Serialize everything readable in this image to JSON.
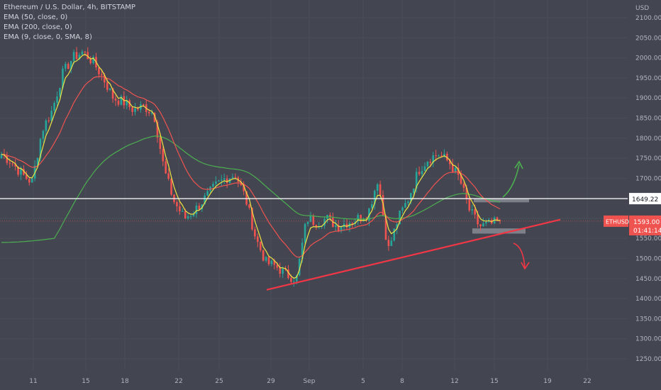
{
  "legend": {
    "line1": "Ethereum / U.S. Dollar, 4h, BITSTAMP",
    "line2": "EMA (50, close, 0)",
    "line3": "EMA (200, close, 0)",
    "line4": "EMA (9, close, 0, SMA, 8)"
  },
  "colors": {
    "background": "#434651",
    "up": "#26a69a",
    "down": "#ef5350",
    "ema9": "#f0e442",
    "ema50": "#ef5350",
    "ema200": "#4caf50",
    "trendline": "#f23645",
    "resistance": "#ffffff",
    "arrow_up": "#4caf50",
    "arrow_down": "#f23645"
  },
  "chart_data": {
    "type": "candlestick",
    "currency": "USD",
    "y_ticks": [
      1250,
      1300,
      1350,
      1400,
      1450,
      1500,
      1550,
      1600,
      1650,
      1700,
      1750,
      1800,
      1850,
      1900,
      1950,
      2000,
      2050,
      2100
    ],
    "y_tick_labels": [
      "1250.00",
      "1300.00",
      "1350.00",
      "1400.00",
      "1450.00",
      "1500.00",
      "1550.00",
      "1600.00",
      "1650.00",
      "1700.00",
      "1750.00",
      "1800.00",
      "1850.00",
      "1900.00",
      "1950.00",
      "2000.00",
      "2050.00",
      "2100.00"
    ],
    "x_tick_labels": [
      "11",
      "15",
      "18",
      "22",
      "25",
      "29",
      "Sep",
      "5",
      "8",
      "12",
      "15",
      "19",
      "22"
    ],
    "ylim": [
      1230,
      2120
    ],
    "resistance_level": 1649.22,
    "resistance_label": "1649.22",
    "last_price": 1593.0,
    "last_price_label": "1593.00",
    "symbol": "ETHUSD",
    "countdown": "01:41:14",
    "trendline": {
      "from": [
        1422,
        1422
      ],
      "to": [
        1597,
        1597
      ]
    },
    "zones": [
      {
        "name": "resistance-zone",
        "top": 1650,
        "bottom": 1640
      },
      {
        "name": "support-zone",
        "top": 1575,
        "bottom": 1562
      }
    ],
    "path_waypoints": [
      1760,
      1740,
      1710,
      1690,
      1820,
      1870,
      1960,
      2000,
      2015,
      1990,
      1950,
      1900,
      1890,
      1870,
      1880,
      1860,
      1720,
      1640,
      1600,
      1620,
      1650,
      1680,
      1700,
      1710,
      1650,
      1550,
      1490,
      1480,
      1460,
      1450,
      1600,
      1590,
      1600,
      1580,
      1590,
      1600,
      1610,
      1700,
      1520,
      1600,
      1650,
      1720,
      1750,
      1760,
      1740,
      1700,
      1620,
      1580,
      1585,
      1593
    ]
  }
}
